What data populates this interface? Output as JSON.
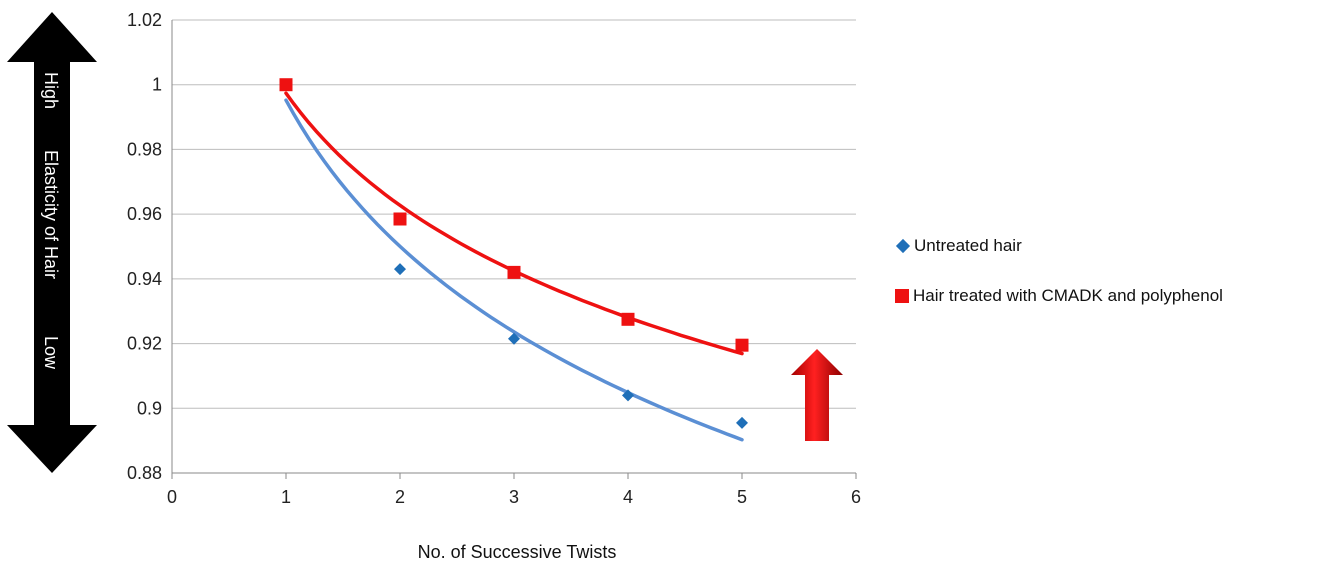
{
  "chart_data": {
    "type": "scatter",
    "xlabel": "No. of Successive Twists",
    "ylabel": "Elasticity of Hair",
    "ylabel_high": "High",
    "ylabel_low": "Low",
    "xlim": [
      0,
      6
    ],
    "ylim": [
      0.88,
      1.02
    ],
    "xticks": [
      0,
      1,
      2,
      3,
      4,
      5,
      6
    ],
    "xtick_labels": [
      "0",
      "1",
      "2",
      "3",
      "4",
      "5",
      "6"
    ],
    "yticks": [
      0.88,
      0.9,
      0.92,
      0.94,
      0.96,
      0.98,
      1.0,
      1.02
    ],
    "ytick_labels": [
      "0.88",
      "0.9",
      "0.92",
      "0.94",
      "0.96",
      "0.98",
      "1",
      "1.02"
    ],
    "grid": true,
    "legend_position": "right",
    "series": [
      {
        "name": "Untreated hair",
        "marker": "diamond",
        "color": "#1f6fb8",
        "trend_color": "#5b8fd4",
        "x": [
          1,
          2,
          3,
          4,
          5
        ],
        "y": [
          1.0,
          0.943,
          0.9215,
          0.904,
          0.8955
        ],
        "trendline": "log"
      },
      {
        "name": "Hair treated with CMADK and polyphenol",
        "marker": "square",
        "color": "#ee1111",
        "trend_color": "#ee1111",
        "x": [
          1,
          2,
          3,
          4,
          5
        ],
        "y": [
          1.0,
          0.9585,
          0.942,
          0.9275,
          0.9195
        ],
        "trendline": "log"
      }
    ],
    "annotations": [
      {
        "type": "double-arrow",
        "color": "#000000",
        "description": "vertical black double arrow beside y axis"
      },
      {
        "type": "up-arrow",
        "color": "#dd0000",
        "description": "red upward arrow near x=5.6"
      }
    ]
  }
}
